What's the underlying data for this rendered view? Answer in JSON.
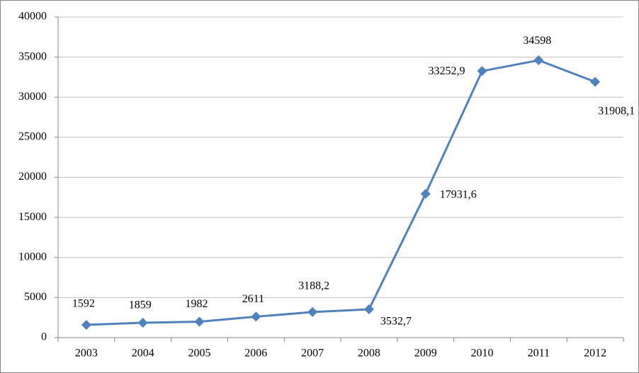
{
  "chart_data": {
    "type": "line",
    "categories": [
      "2003",
      "2004",
      "2005",
      "2006",
      "2007",
      "2008",
      "2009",
      "2010",
      "2011",
      "2012"
    ],
    "values": [
      1592,
      1859,
      1982,
      2611,
      3188.2,
      3532.7,
      17931.6,
      33252.9,
      34598,
      31908.1
    ],
    "value_labels": [
      "1592",
      "1859",
      "1982",
      "2611",
      "3188,2",
      "3532,7",
      "17931,6",
      "33252,9",
      "34598",
      "31908,1"
    ],
    "color": "#4f81bd",
    "ylim": [
      0,
      40000
    ],
    "yticks": [
      0,
      5000,
      10000,
      15000,
      20000,
      25000,
      30000,
      35000,
      40000
    ],
    "grid": true
  }
}
